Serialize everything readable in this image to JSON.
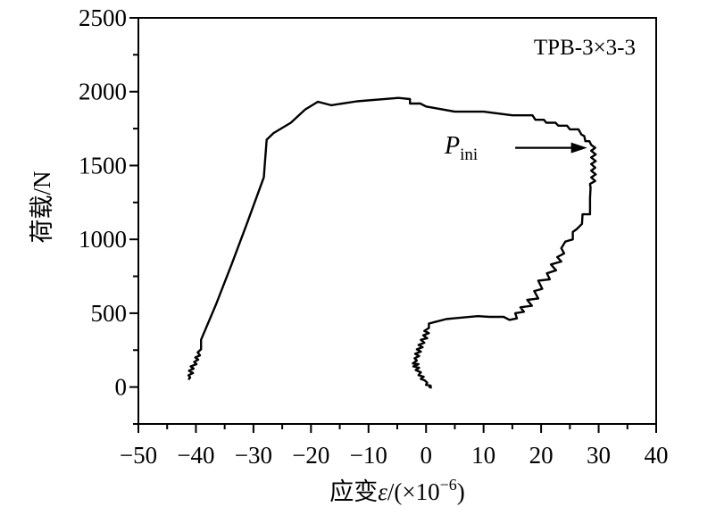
{
  "chart_data": {
    "type": "line",
    "title": "",
    "legend_label": "TPB-3×3-3",
    "legend_placement": "top-right",
    "xlabel": "应变ε/(×10⁻⁶)",
    "xlabel_parts": {
      "main": "应变",
      "symbol": "ε",
      "unit_open": "/(×10",
      "exp": "−6",
      "unit_close": ")"
    },
    "ylabel": "荷载/N",
    "xlim": [
      -50,
      40
    ],
    "ylim": [
      -250,
      2500
    ],
    "xticks": [
      -50,
      -40,
      -30,
      -20,
      -10,
      0,
      10,
      20,
      30,
      40
    ],
    "xtick_labels": [
      "−50",
      "−40",
      "−30",
      "−20",
      "−10",
      "0",
      "10",
      "20",
      "30",
      "40"
    ],
    "yticks": [
      0,
      500,
      1000,
      1500,
      2000,
      2500
    ],
    "ytick_labels": [
      "0",
      "500",
      "1000",
      "1500",
      "2000",
      "2500"
    ],
    "grid": false,
    "annotation": {
      "text_main": "P",
      "text_sub": "ini",
      "arrow_from": [
        15.5,
        1620
      ],
      "arrow_to": [
        28.0,
        1620
      ]
    },
    "series": [
      {
        "color": "#000000",
        "points": [
          [
            -41.3,
            50
          ],
          [
            -41.0,
            65
          ],
          [
            -41.3,
            80
          ],
          [
            -40.5,
            95
          ],
          [
            -41.2,
            110
          ],
          [
            -40.4,
            125
          ],
          [
            -40.9,
            140
          ],
          [
            -39.9,
            155
          ],
          [
            -40.3,
            170
          ],
          [
            -39.6,
            185
          ],
          [
            -40.1,
            200
          ],
          [
            -39.3,
            215
          ],
          [
            -39.7,
            235
          ],
          [
            -39.1,
            255
          ],
          [
            -39.1,
            320
          ],
          [
            -36.5,
            560
          ],
          [
            -33.8,
            830
          ],
          [
            -31.0,
            1120
          ],
          [
            -28.2,
            1420
          ],
          [
            -27.7,
            1675
          ],
          [
            -26.5,
            1720
          ],
          [
            -23.5,
            1790
          ],
          [
            -21.0,
            1880
          ],
          [
            -18.8,
            1932
          ],
          [
            -16.5,
            1908
          ],
          [
            -12.0,
            1935
          ],
          [
            -4.8,
            1958
          ],
          [
            -2.8,
            1950
          ],
          [
            -2.8,
            1920
          ],
          [
            -1.0,
            1920
          ],
          [
            0.0,
            1900
          ],
          [
            5.0,
            1865
          ],
          [
            10.0,
            1865
          ],
          [
            15.0,
            1840
          ],
          [
            18.5,
            1840
          ],
          [
            19.0,
            1810
          ],
          [
            20.5,
            1810
          ],
          [
            20.9,
            1790
          ],
          [
            22.5,
            1790
          ],
          [
            23.0,
            1770
          ],
          [
            24.5,
            1770
          ],
          [
            25.0,
            1745
          ],
          [
            26.5,
            1745
          ],
          [
            27.0,
            1710
          ],
          [
            27.5,
            1700
          ],
          [
            27.7,
            1665
          ],
          [
            28.4,
            1665
          ],
          [
            28.7,
            1640
          ],
          [
            29.4,
            1620
          ],
          [
            28.7,
            1600
          ],
          [
            29.5,
            1575
          ],
          [
            28.7,
            1555
          ],
          [
            29.5,
            1530
          ],
          [
            28.7,
            1510
          ],
          [
            29.4,
            1485
          ],
          [
            28.7,
            1465
          ],
          [
            29.5,
            1440
          ],
          [
            28.7,
            1420
          ],
          [
            29.4,
            1395
          ],
          [
            28.5,
            1375
          ],
          [
            28.6,
            1350
          ],
          [
            28.5,
            1280
          ],
          [
            28.5,
            1170
          ],
          [
            27.2,
            1170
          ],
          [
            27.1,
            1105
          ],
          [
            26.2,
            1070
          ],
          [
            25.5,
            1050
          ],
          [
            25.5,
            1000
          ],
          [
            24.2,
            985
          ],
          [
            23.5,
            940
          ],
          [
            24.0,
            905
          ],
          [
            22.8,
            880
          ],
          [
            23.5,
            850
          ],
          [
            21.7,
            830
          ],
          [
            22.6,
            790
          ],
          [
            21.0,
            770
          ],
          [
            21.5,
            730
          ],
          [
            19.5,
            720
          ],
          [
            20.2,
            665
          ],
          [
            18.8,
            650
          ],
          [
            19.5,
            600
          ],
          [
            17.6,
            590
          ],
          [
            18.4,
            550
          ],
          [
            16.4,
            540
          ],
          [
            17.0,
            510
          ],
          [
            15.5,
            500
          ],
          [
            15.8,
            465
          ],
          [
            14.5,
            455
          ],
          [
            13.5,
            475
          ],
          [
            11.0,
            475
          ],
          [
            9.0,
            480
          ],
          [
            6.0,
            470
          ],
          [
            3.5,
            460
          ],
          [
            1.5,
            440
          ],
          [
            0.5,
            430
          ],
          [
            0.5,
            400
          ],
          [
            -0.3,
            380
          ],
          [
            0.5,
            365
          ],
          [
            -0.5,
            350
          ],
          [
            0.2,
            330
          ],
          [
            -0.9,
            320
          ],
          [
            -0.3,
            300
          ],
          [
            -1.3,
            285
          ],
          [
            -0.6,
            270
          ],
          [
            -1.6,
            255
          ],
          [
            -0.9,
            240
          ],
          [
            -1.9,
            225
          ],
          [
            -1.2,
            210
          ],
          [
            -2.0,
            195
          ],
          [
            -1.6,
            180
          ],
          [
            -2.3,
            160
          ],
          [
            -1.3,
            155
          ],
          [
            -2.2,
            140
          ],
          [
            -1.2,
            130
          ],
          [
            -1.8,
            115
          ],
          [
            -0.9,
            100
          ],
          [
            -1.3,
            80
          ],
          [
            -0.4,
            70
          ],
          [
            -0.9,
            55
          ],
          [
            -0.2,
            45
          ],
          [
            0.2,
            30
          ],
          [
            0.0,
            15
          ],
          [
            0.8,
            10
          ],
          [
            0.6,
            0
          ],
          [
            1.0,
            -5
          ]
        ]
      }
    ]
  }
}
